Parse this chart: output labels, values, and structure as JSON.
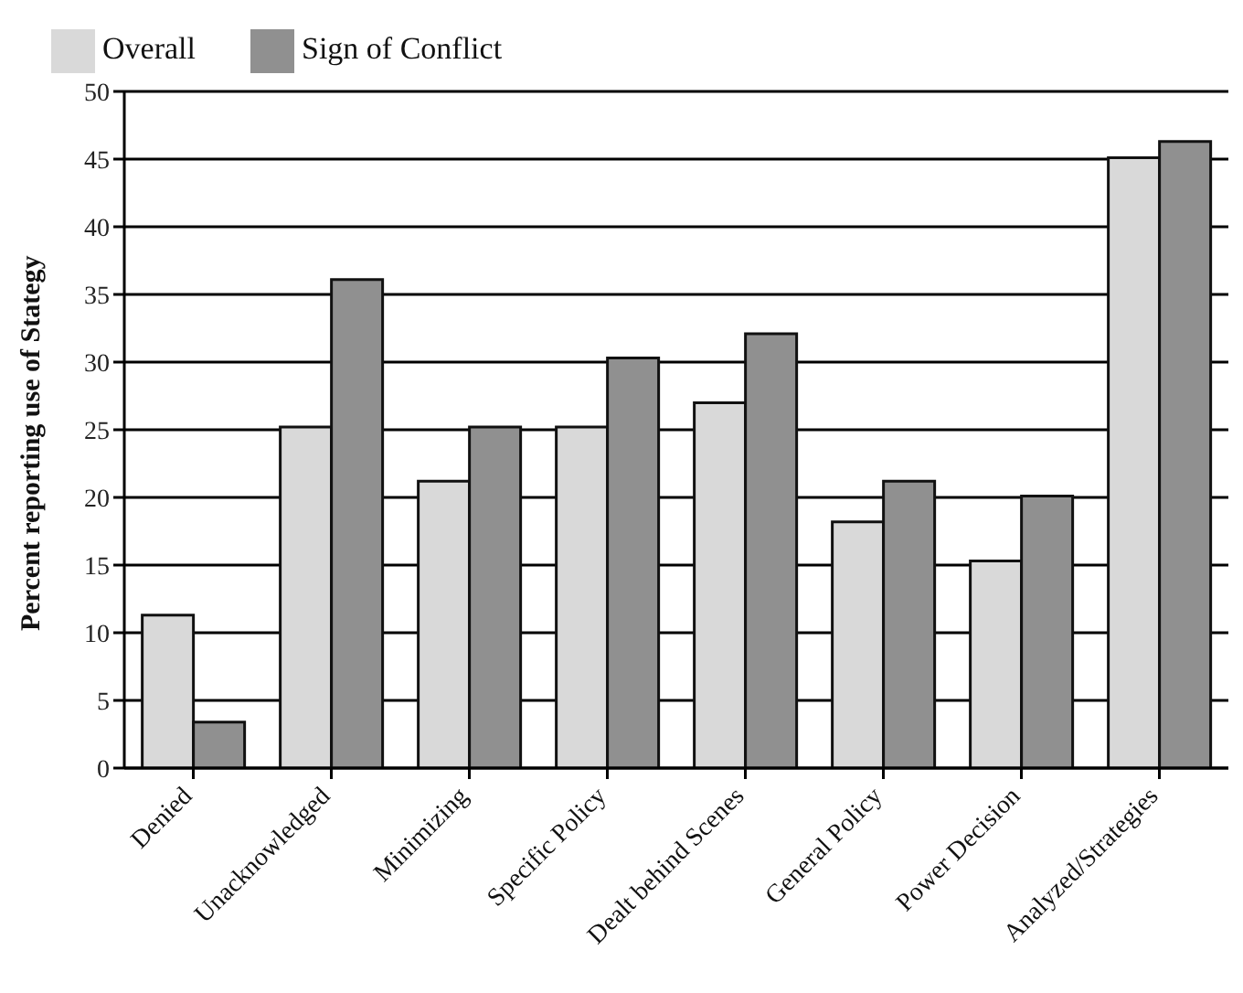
{
  "chart_data": {
    "type": "bar",
    "ylabel": "Percent reporting use of Stategy",
    "categories": [
      "Denied",
      "Unacknowledged",
      "Minimizing",
      "Specific Policy",
      "Dealt behind Scenes",
      "General Policy",
      "Power Decision",
      "Analyzed/Strategies"
    ],
    "series": [
      {
        "name": "Overall",
        "color": "#d9d9d9",
        "values": [
          11.3,
          25.2,
          21.2,
          25.2,
          27.0,
          18.2,
          15.3,
          45.1
        ]
      },
      {
        "name": "Sign of Conflict",
        "color": "#909090",
        "values": [
          3.4,
          36.1,
          25.2,
          30.3,
          32.1,
          21.2,
          20.1,
          46.3
        ]
      }
    ],
    "ylim": [
      0,
      50
    ],
    "yticks": [
      0,
      5,
      10,
      15,
      20,
      25,
      30,
      35,
      40,
      45,
      50
    ],
    "grid": "y",
    "legend": "top left"
  }
}
